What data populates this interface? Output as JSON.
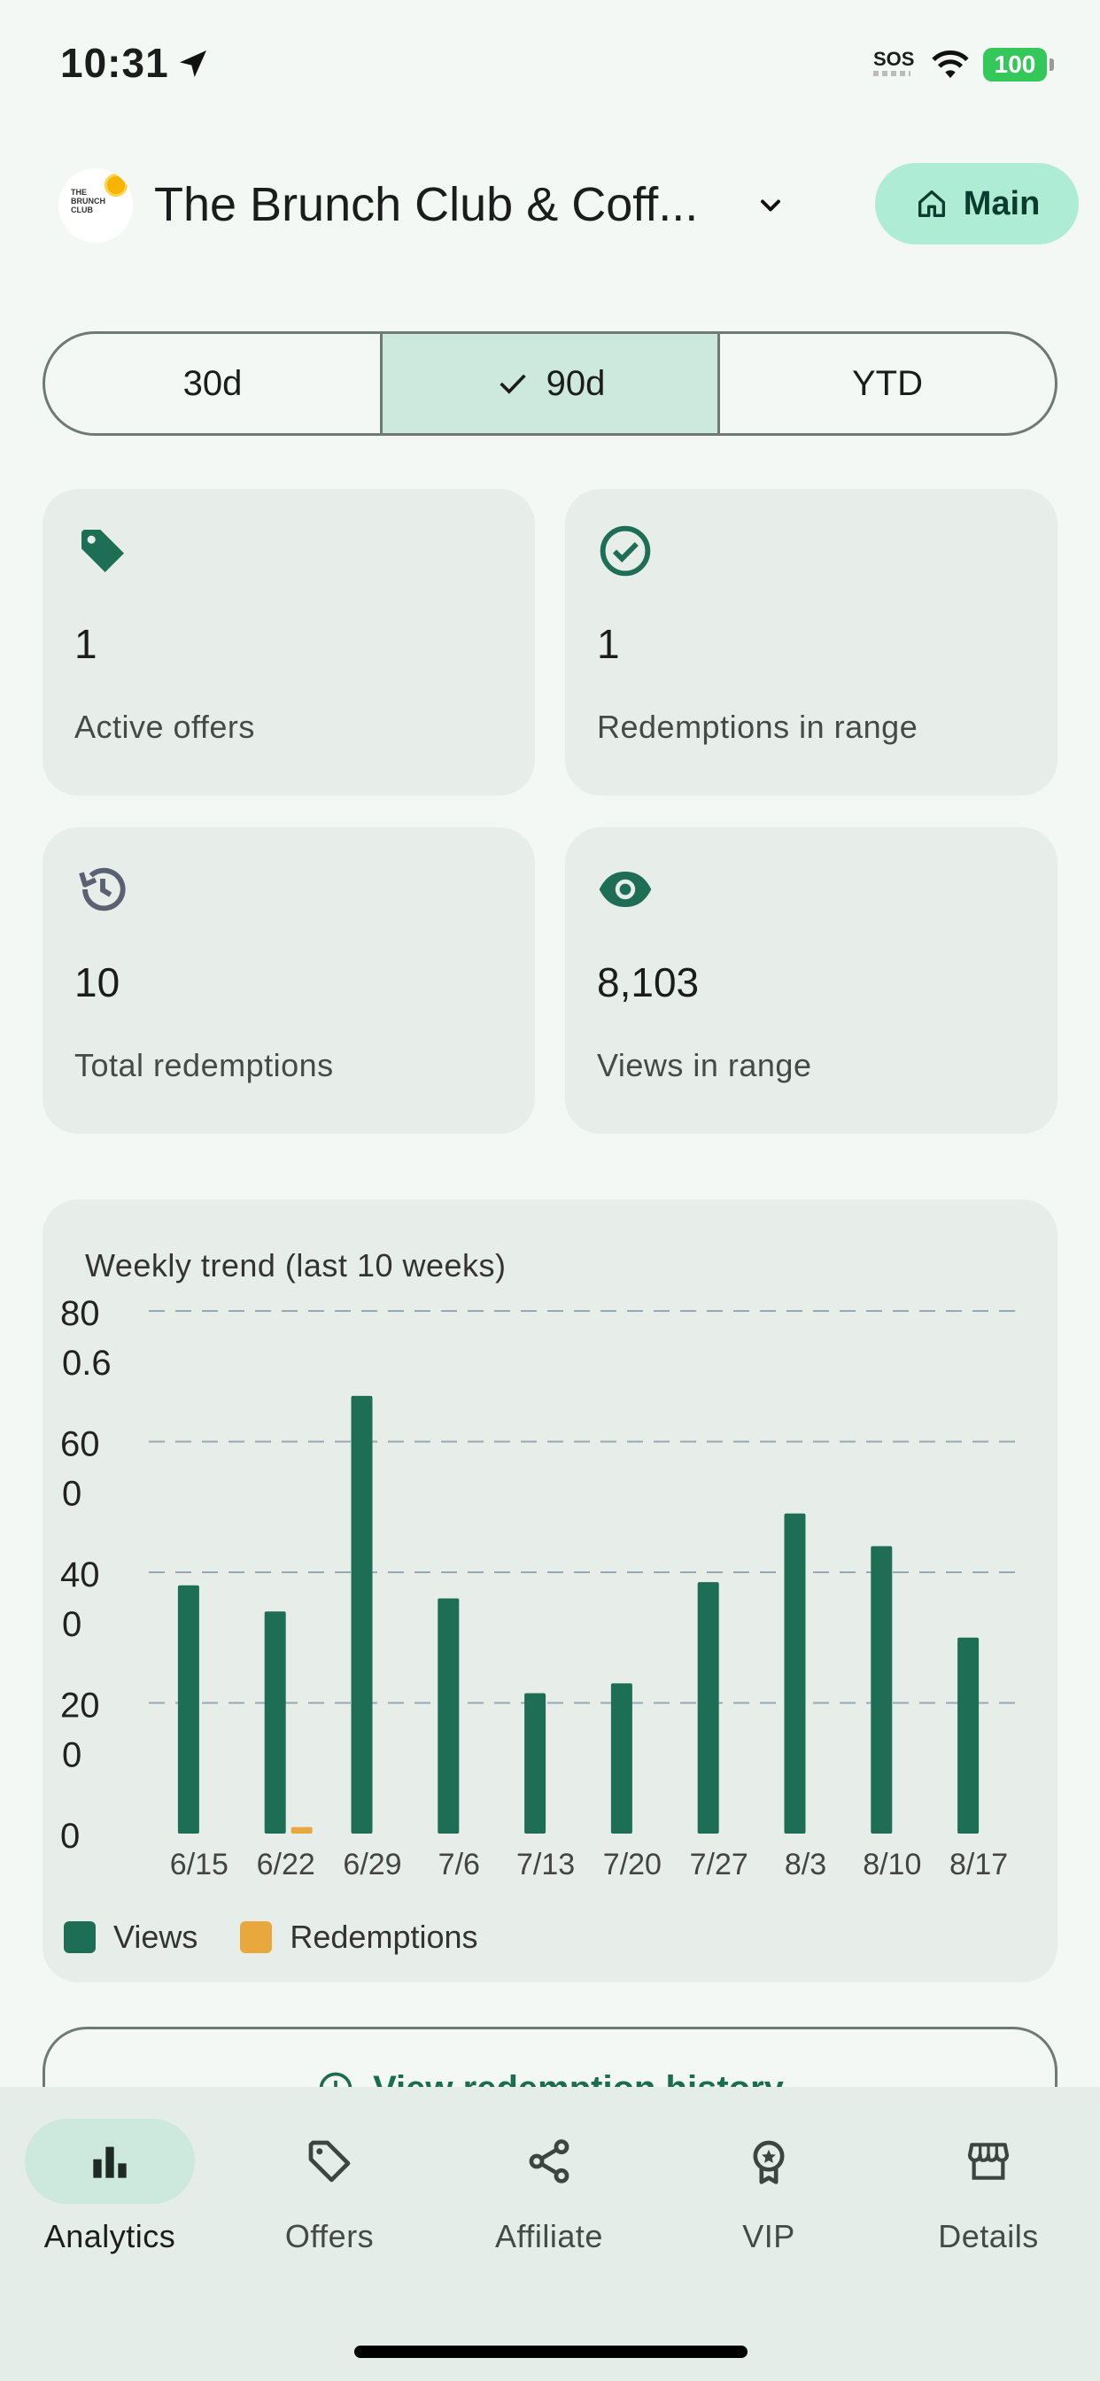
{
  "status_bar": {
    "time": "10:31",
    "sos": "SOS",
    "battery": "100"
  },
  "header": {
    "business_name": "The Brunch Club & Coff...",
    "main_button": "Main"
  },
  "range_selector": {
    "options": [
      "30d",
      "90d",
      "YTD"
    ],
    "selected": "90d"
  },
  "stats": [
    {
      "icon": "tag-icon",
      "value": "1",
      "label": "Active offers"
    },
    {
      "icon": "check-circle-icon",
      "value": "1",
      "label": "Redemptions in range"
    },
    {
      "icon": "history-icon",
      "value": "10",
      "label": "Total redemptions"
    },
    {
      "icon": "eye-icon",
      "value": "8,103",
      "label": "Views in range"
    }
  ],
  "chart_data": {
    "type": "bar",
    "title": "Weekly trend (last 10 weeks)",
    "categories": [
      "6/15",
      "6/22",
      "6/29",
      "7/6",
      "7/13",
      "7/20",
      "7/27",
      "8/3",
      "8/10",
      "8/17"
    ],
    "series": [
      {
        "name": "Views",
        "color": "#1e6e55",
        "values": [
          38,
          34,
          67,
          36,
          21.5,
          23,
          38.5,
          49,
          44,
          30
        ]
      },
      {
        "name": "Redemptions",
        "color": "#e8a83e",
        "values": [
          0,
          1,
          0,
          0,
          0,
          0,
          0,
          0,
          0,
          0
        ]
      }
    ],
    "y_ticks_left": [
      "80",
      "60",
      "40",
      "20",
      "0"
    ],
    "y_ticks_right_overlap": [
      "0.6",
      "0",
      "0",
      "0"
    ],
    "ylim": [
      0,
      80
    ],
    "grid": true,
    "legend": "bottom-left"
  },
  "history_button": {
    "label": "View redemption history"
  },
  "bottom_nav": {
    "items": [
      {
        "label": "Analytics",
        "icon": "bar-chart-icon",
        "active": true
      },
      {
        "label": "Offers",
        "icon": "tag-outline-icon",
        "active": false
      },
      {
        "label": "Affiliate",
        "icon": "share-icon",
        "active": false
      },
      {
        "label": "VIP",
        "icon": "badge-icon",
        "active": false
      },
      {
        "label": "Details",
        "icon": "storefront-icon",
        "active": false
      }
    ]
  },
  "colors": {
    "accent": "#1e6e55",
    "redemptions": "#e8a83e",
    "main_button_bg": "#aeecd6",
    "active_seg_bg": "#cde8dc"
  }
}
